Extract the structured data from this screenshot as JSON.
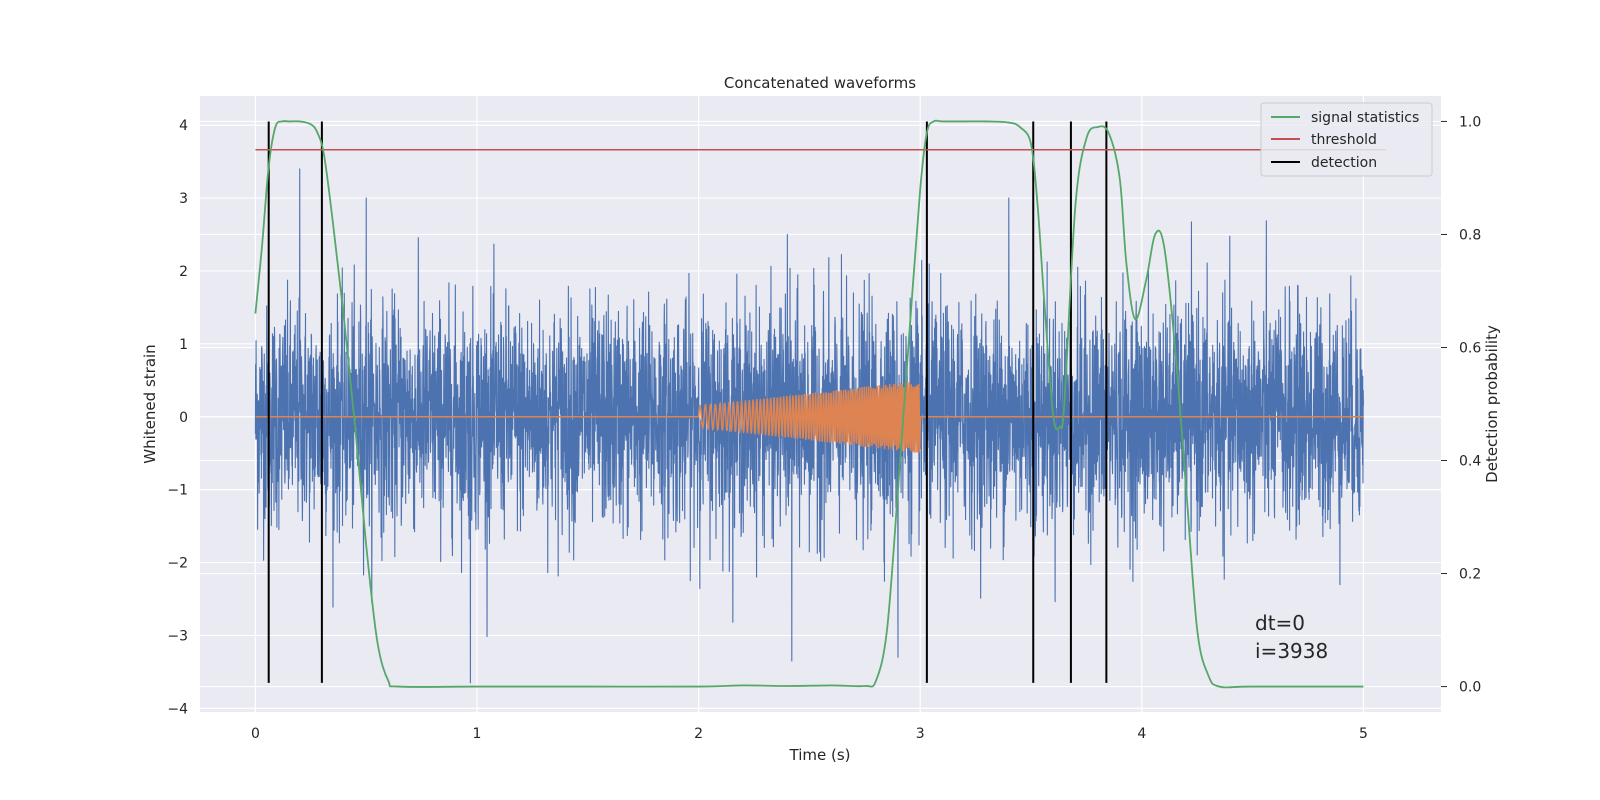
{
  "chart_data": {
    "type": "line",
    "title": "Concatenated waveforms",
    "xlabel": "Time (s)",
    "ylabel": "Whitened strain",
    "y2label": "Detection probability",
    "xlim": [
      -0.25,
      5.35
    ],
    "ylim": [
      -4.05,
      4.4
    ],
    "y2lim": [
      -0.045,
      1.045
    ],
    "x_ticks": [
      "0",
      "1",
      "2",
      "3",
      "4",
      "5"
    ],
    "y_ticks": [
      "−4",
      "−3",
      "−2",
      "−1",
      "0",
      "1",
      "2",
      "3",
      "4"
    ],
    "y2_ticks": [
      "0.0",
      "0.2",
      "0.4",
      "0.6",
      "0.8",
      "1.0"
    ],
    "grid": true,
    "legend_position": "upper-right",
    "series": [
      {
        "name": "",
        "axis": "left",
        "color": "#4c72b0",
        "kind": "noise",
        "x_range": [
          0,
          5
        ],
        "typical_upper_envelope": 1.5,
        "typical_lower_envelope": -1.6,
        "notable_peaks": [
          [
            0.2,
            3.4
          ],
          [
            0.5,
            3.0
          ],
          [
            2.4,
            2.5
          ],
          [
            3.4,
            3.0
          ],
          [
            0.97,
            -3.65
          ],
          [
            2.42,
            -3.35
          ],
          [
            2.9,
            -3.3
          ]
        ]
      },
      {
        "name": "",
        "axis": "left",
        "color": "#dd8452",
        "kind": "chirp",
        "x_range": [
          0,
          5
        ],
        "chirp_start": 2.0,
        "chirp_end": 3.0,
        "start_amplitude": 0.15,
        "end_amplitude": 0.5
      },
      {
        "name": "signal statistics",
        "axis": "right",
        "color": "#55a868",
        "x": [
          0.0,
          0.03,
          0.06,
          0.09,
          0.12,
          0.15,
          0.2,
          0.25,
          0.28,
          0.31,
          0.35,
          0.4,
          0.45,
          0.5,
          0.55,
          0.6,
          0.65,
          1.0,
          1.5,
          2.0,
          2.2,
          2.4,
          2.6,
          2.75,
          2.8,
          2.85,
          2.9,
          2.95,
          3.0,
          3.03,
          3.06,
          3.1,
          3.2,
          3.3,
          3.4,
          3.45,
          3.5,
          3.53,
          3.56,
          3.6,
          3.63,
          3.65,
          3.7,
          3.75,
          3.8,
          3.85,
          3.9,
          3.93,
          3.97,
          4.02,
          4.06,
          4.1,
          4.15,
          4.2,
          4.25,
          4.3,
          4.35,
          4.5,
          5.0
        ],
        "y": [
          0.66,
          0.78,
          0.92,
          0.99,
          1.0,
          1.0,
          1.0,
          0.995,
          0.98,
          0.94,
          0.82,
          0.65,
          0.46,
          0.25,
          0.08,
          0.01,
          0.0,
          0.0,
          0.0,
          0.0,
          0.002,
          0.001,
          0.002,
          0.001,
          0.01,
          0.1,
          0.35,
          0.62,
          0.88,
          0.98,
          1.0,
          1.0,
          1.0,
          1.0,
          0.998,
          0.99,
          0.96,
          0.85,
          0.68,
          0.48,
          0.46,
          0.5,
          0.85,
          0.97,
          0.99,
          0.98,
          0.9,
          0.75,
          0.65,
          0.72,
          0.8,
          0.78,
          0.6,
          0.35,
          0.1,
          0.02,
          0.0,
          0.0,
          0.0
        ]
      },
      {
        "name": "threshold",
        "axis": "right",
        "color": "#c44e52",
        "x": [
          0.0,
          5.1
        ],
        "y": [
          0.95,
          0.95
        ]
      },
      {
        "name": "detection",
        "axis": "left",
        "color": "#000000",
        "kind": "vlines",
        "x": [
          0.06,
          0.3,
          3.03,
          3.51,
          3.68,
          3.84
        ],
        "ymin": -3.65,
        "ymax": 4.05
      }
    ],
    "annotations": [
      "dt=0",
      "i=3938"
    ]
  }
}
